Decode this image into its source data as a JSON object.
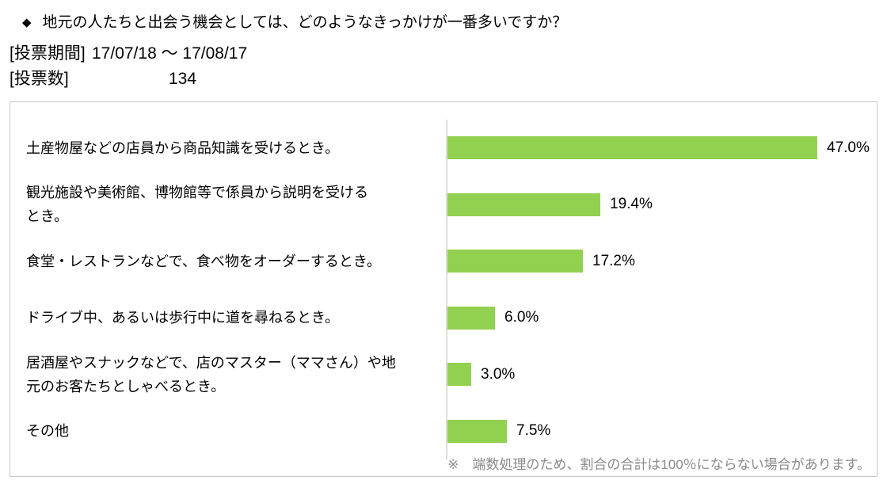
{
  "header": {
    "bullet": "◆",
    "title": "地元の人たちと出会う機会としては、どのようなきっかけが一番多いですか？",
    "meta": [
      {
        "label": "[投票期間]",
        "value": "17/07/18 ～ 17/08/17"
      },
      {
        "label": "[投票数]",
        "value": "134"
      }
    ]
  },
  "chart_data": {
    "type": "bar",
    "orientation": "horizontal",
    "title": "",
    "categories": [
      "土産物屋などの店員から商品知識を受けるとき。",
      "観光施設や美術館、博物館等で係員から説明を受ける\nとき。",
      "食堂・レストランなどで、食べ物をオーダーするとき。",
      "ドライブ中、あるいは歩行中に道を尋ねるとき。",
      "居酒屋やスナックなどで、店のマスター（ママさん）や地\n元のお客たちとしゃべるとき。",
      "その他"
    ],
    "values": [
      47.0,
      19.4,
      17.2,
      6.0,
      3.0,
      7.5
    ],
    "value_labels": [
      "47.0%",
      "19.4%",
      "17.2%",
      "6.0%",
      "3.0%",
      "7.5%"
    ],
    "xlim": [
      0,
      50
    ],
    "bar_color": "#92D050",
    "axis_line_color": "#dcdcdc",
    "grid": false,
    "legend": "none",
    "footnote": "※　端数処理のため、割合の合計は100％にならない場合があります。"
  }
}
